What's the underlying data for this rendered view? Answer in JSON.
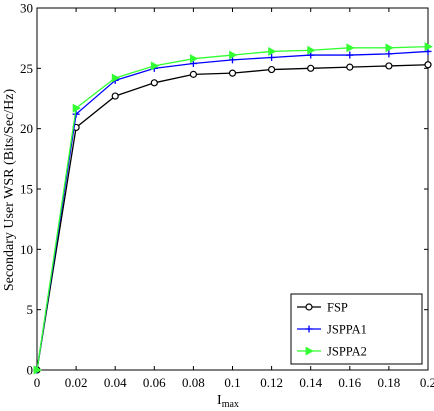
{
  "chart_data": {
    "type": "line",
    "xlabel": "I",
    "xlabel_sub": "max",
    "ylabel": "Secondary User WSR (Bits/Sec/Hz)",
    "xlim": [
      0,
      0.2
    ],
    "ylim": [
      0,
      30
    ],
    "x_ticks": [
      "0",
      "0.02",
      "0.04",
      "0.06",
      "0.08",
      "0.1",
      "0.12",
      "0.14",
      "0.16",
      "0.18",
      "0.2"
    ],
    "y_ticks": [
      "0",
      "5",
      "10",
      "15",
      "20",
      "25",
      "30"
    ],
    "x": [
      0,
      0.02,
      0.04,
      0.06,
      0.08,
      0.1,
      0.12,
      0.14,
      0.16,
      0.18,
      0.2
    ],
    "grid": false,
    "legend_position": "bottom-right",
    "series": [
      {
        "name": "FSP",
        "color": "#000000",
        "marker": "circle",
        "values": [
          0,
          20.1,
          22.7,
          23.8,
          24.5,
          24.6,
          24.9,
          25.0,
          25.1,
          25.2,
          25.3
        ]
      },
      {
        "name": "JSPPA1",
        "color": "#0000ff",
        "marker": "plus",
        "values": [
          0,
          21.2,
          24.0,
          25.0,
          25.4,
          25.7,
          25.9,
          26.1,
          26.1,
          26.2,
          26.4
        ]
      },
      {
        "name": "JSPPA2",
        "color": "#33ff33",
        "marker": "triangle-right",
        "values": [
          0,
          21.7,
          24.2,
          25.2,
          25.8,
          26.1,
          26.4,
          26.5,
          26.7,
          26.7,
          26.8
        ]
      }
    ]
  }
}
